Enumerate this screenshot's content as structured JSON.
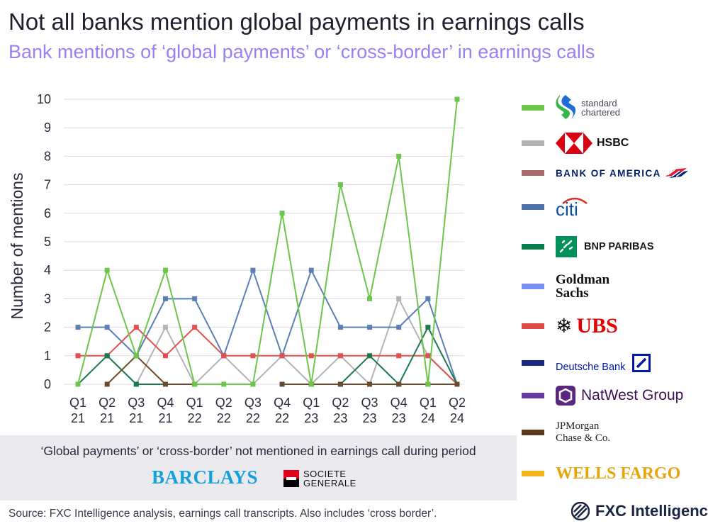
{
  "header": {
    "title": "Not all banks mention global payments in earnings calls",
    "subtitle": "Bank mentions of ‘global payments’ or ‘cross-border’ in earnings calls"
  },
  "chart_data": {
    "type": "line",
    "ylabel": "Number of mentions",
    "ylim": [
      0,
      10
    ],
    "yticks": [
      0,
      1,
      2,
      3,
      4,
      5,
      6,
      7,
      8,
      9,
      10
    ],
    "grid": true,
    "legend_placement": "right",
    "categories": [
      [
        "Q1",
        "21"
      ],
      [
        "Q2",
        "21"
      ],
      [
        "Q3",
        "21"
      ],
      [
        "Q4",
        "21"
      ],
      [
        "Q1",
        "22"
      ],
      [
        "Q2",
        "22"
      ],
      [
        "Q3",
        "22"
      ],
      [
        "Q4",
        "22"
      ],
      [
        "Q1",
        "23"
      ],
      [
        "Q2",
        "23"
      ],
      [
        "Q3",
        "23"
      ],
      [
        "Q4",
        "23"
      ],
      [
        "Q1",
        "24"
      ],
      [
        "Q2",
        "24"
      ]
    ],
    "series": [
      {
        "name": "HSBC",
        "color": "#b3b3b3",
        "values": [
          null,
          1,
          0,
          2,
          0,
          1,
          0,
          1,
          0,
          1,
          0,
          3,
          1,
          0
        ]
      },
      {
        "name": "Citi",
        "color": "#5b7fb5",
        "values": [
          2,
          2,
          1,
          3,
          3,
          1,
          4,
          1,
          4,
          2,
          2,
          2,
          3,
          0
        ]
      },
      {
        "name": "UBS",
        "color": "#e0514f",
        "values": [
          1,
          1,
          2,
          1,
          2,
          1,
          1,
          1,
          1,
          1,
          1,
          1,
          1,
          0
        ]
      },
      {
        "name": "BNP Paribas",
        "color": "#1a7a50",
        "values": [
          0,
          1,
          0,
          0,
          null,
          null,
          null,
          null,
          0,
          0,
          1,
          0,
          2,
          0
        ]
      },
      {
        "name": "JPMorgan Chase & Co.",
        "color": "#6b4a2e",
        "values": [
          null,
          0,
          1,
          0,
          0,
          null,
          null,
          0,
          0,
          0,
          0,
          0,
          0,
          0
        ]
      },
      {
        "name": "Standard Chartered",
        "color": "#6cc64a",
        "values": [
          0,
          4,
          1,
          4,
          0,
          0,
          0,
          6,
          0,
          7,
          3,
          8,
          0,
          10
        ]
      }
    ]
  },
  "legend": [
    {
      "name": "Standard Chartered",
      "logo_text": [
        "standard",
        "chartered"
      ],
      "color": "#6cc64a"
    },
    {
      "name": "HSBC",
      "logo_text": "HSBC",
      "color": "#b3b3b3"
    },
    {
      "name": "Bank of America",
      "logo_text": "BANK OF AMERICA",
      "color": "#a86b6b"
    },
    {
      "name": "Citi",
      "logo_text": "citi",
      "color": "#4f6fa8"
    },
    {
      "name": "BNP Paribas",
      "logo_text": "BNP PARIBAS",
      "color": "#0b7a4c"
    },
    {
      "name": "Goldman Sachs",
      "logo_text": [
        "Goldman",
        "Sachs"
      ],
      "color": "#7b8ff2"
    },
    {
      "name": "UBS",
      "logo_text": "UBS",
      "color": "#e04a4a"
    },
    {
      "name": "Deutsche Bank",
      "logo_text": "Deutsche Bank",
      "color": "#1c2b7a"
    },
    {
      "name": "NatWest Group",
      "logo_text": "NatWest Group",
      "color": "#6a3aa0"
    },
    {
      "name": "JPMorgan Chase & Co.",
      "logo_text": [
        "JPMorgan",
        "Chase & Co."
      ],
      "color": "#5a3a1f"
    },
    {
      "name": "Wells Fargo",
      "logo_text": "WELLS FARGO",
      "color": "#f2b21b"
    }
  ],
  "not_mentioned": {
    "text": "‘Global payments’ or ‘cross-border’ not mentioned in earnings call during period",
    "banks": [
      {
        "logo_text": "BARCLAYS",
        "color": "#16a0d8"
      },
      {
        "logo_text": [
          "SOCIETE",
          "GENERALE"
        ],
        "color": "#e4001b"
      }
    ]
  },
  "footer": {
    "source": "Source: FXC Intelligence analysis, earnings call transcripts. Also includes ‘cross border’.",
    "brand": "FXC Intelligence"
  }
}
